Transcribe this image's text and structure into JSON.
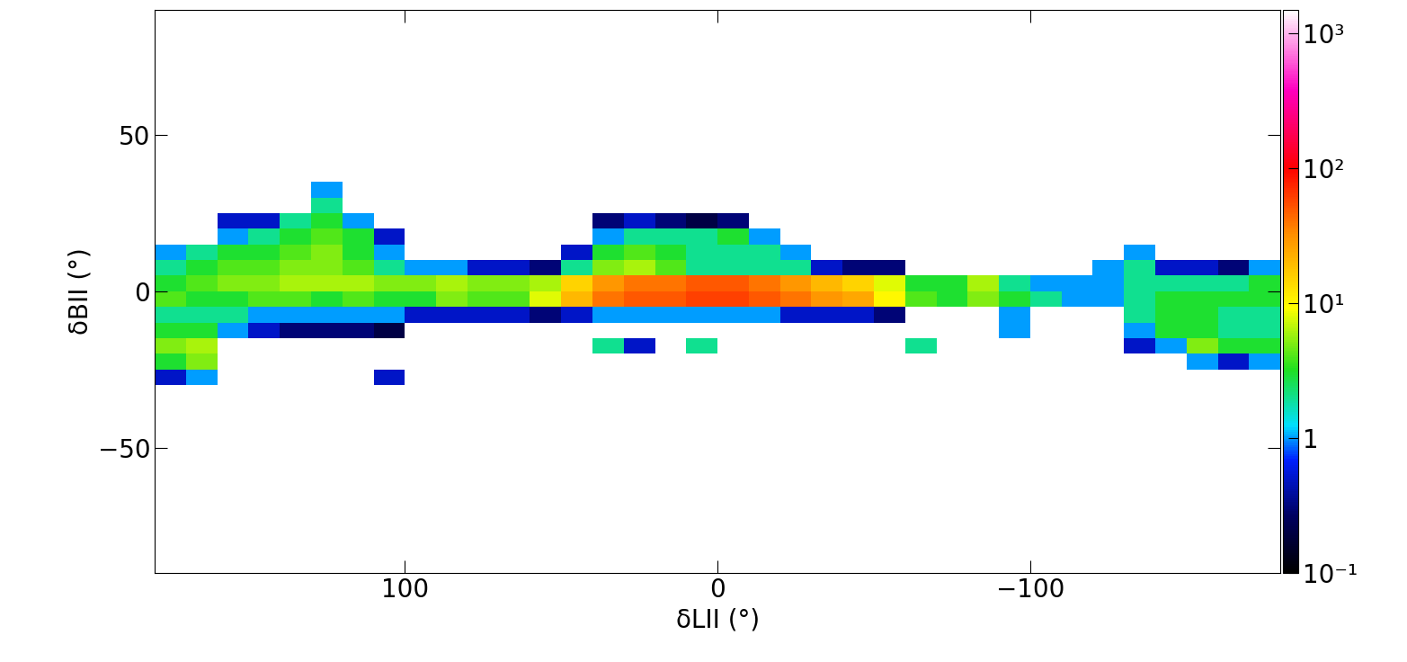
{
  "chart_data": {
    "type": "heatmap",
    "x_label": "δLII (°)",
    "y_label": "δBII (°)",
    "xlim": [
      180,
      -180
    ],
    "ylim": [
      -90,
      90
    ],
    "xticks": [
      100,
      0,
      {
        "value": -100,
        "label": "−100"
      }
    ],
    "yticks": [
      {
        "value": -50,
        "label": "−50"
      },
      0,
      50
    ],
    "log": true,
    "x_edges": [
      180,
      170,
      160,
      150,
      140,
      130,
      120,
      110,
      100,
      90,
      80,
      70,
      60,
      50,
      40,
      30,
      20,
      10,
      0,
      -10,
      -20,
      -30,
      -40,
      -50,
      -60,
      -70,
      -80,
      -90,
      -100,
      -110,
      -120,
      -130,
      -140,
      -150,
      -160,
      -170,
      -180
    ],
    "y_edges": [
      -35,
      -30,
      -25,
      -20,
      -15,
      -10,
      -5,
      0,
      5,
      10,
      15,
      20,
      25,
      30,
      35
    ],
    "cells": [
      [
        null,
        null,
        null,
        null,
        null,
        null,
        null,
        null,
        null,
        null,
        null,
        null,
        null,
        null,
        null,
        null,
        null,
        null,
        null,
        null,
        null,
        null,
        null,
        null,
        null,
        null,
        null,
        null,
        null,
        null,
        null,
        null,
        null,
        null,
        null,
        null
      ],
      [
        0.5,
        1,
        null,
        null,
        null,
        null,
        null,
        0.5,
        null,
        null,
        null,
        null,
        null,
        null,
        null,
        null,
        null,
        null,
        null,
        null,
        null,
        null,
        null,
        null,
        null,
        null,
        null,
        null,
        null,
        null,
        null,
        null,
        null,
        null,
        null,
        null
      ],
      [
        3,
        5,
        null,
        null,
        null,
        null,
        null,
        null,
        null,
        null,
        null,
        null,
        null,
        null,
        null,
        null,
        null,
        null,
        null,
        null,
        null,
        null,
        null,
        null,
        null,
        null,
        null,
        null,
        null,
        null,
        null,
        null,
        null,
        1,
        0.5,
        1
      ],
      [
        5,
        6,
        null,
        null,
        null,
        null,
        null,
        null,
        null,
        null,
        null,
        null,
        null,
        null,
        2,
        0.5,
        null,
        2,
        null,
        null,
        null,
        null,
        null,
        null,
        2,
        null,
        null,
        null,
        null,
        null,
        null,
        0.5,
        1,
        5,
        3,
        3
      ],
      [
        3,
        3,
        1,
        0.5,
        0.3,
        0.3,
        0.3,
        0.2,
        null,
        null,
        null,
        null,
        null,
        null,
        null,
        null,
        null,
        null,
        null,
        null,
        null,
        null,
        null,
        null,
        null,
        null,
        null,
        1,
        null,
        null,
        null,
        1,
        3,
        3,
        2,
        2
      ],
      [
        2,
        2,
        2,
        1,
        1,
        1,
        1,
        1,
        0.5,
        0.5,
        0.5,
        0.5,
        0.3,
        0.5,
        1,
        1,
        1,
        1,
        1,
        1,
        0.5,
        0.5,
        0.5,
        0.3,
        null,
        null,
        null,
        1,
        null,
        null,
        null,
        2,
        3,
        3,
        2,
        2
      ],
      [
        4,
        3,
        3,
        4,
        4,
        3,
        4,
        3,
        3,
        5,
        4,
        4,
        8,
        20,
        40,
        50,
        50,
        60,
        60,
        50,
        40,
        30,
        25,
        10,
        4,
        3,
        5,
        3,
        2,
        1,
        1,
        2,
        3,
        3,
        3,
        3
      ],
      [
        3,
        4,
        5,
        5,
        6,
        6,
        6,
        5,
        5,
        6,
        5,
        5,
        6,
        15,
        30,
        40,
        40,
        50,
        50,
        40,
        30,
        20,
        15,
        8,
        3,
        3,
        6,
        2,
        1,
        1,
        1,
        2,
        2,
        2,
        2,
        3
      ],
      [
        2,
        3,
        4,
        4,
        5,
        5,
        4,
        2,
        1,
        1,
        0.5,
        0.5,
        0.3,
        2,
        5,
        6,
        4,
        2,
        2,
        2,
        2,
        0.5,
        0.3,
        0.3,
        null,
        null,
        null,
        null,
        null,
        null,
        1,
        2,
        0.5,
        0.5,
        0.3,
        1
      ],
      [
        1,
        2,
        3,
        3,
        4,
        5,
        3,
        1,
        null,
        null,
        null,
        null,
        null,
        0.5,
        3,
        4,
        3,
        2,
        2,
        2,
        1,
        null,
        null,
        null,
        null,
        null,
        null,
        null,
        null,
        null,
        null,
        1,
        null,
        null,
        null,
        null
      ],
      [
        null,
        null,
        1,
        2,
        3,
        4,
        3,
        0.5,
        null,
        null,
        null,
        null,
        null,
        null,
        1,
        2,
        2,
        2,
        3,
        1,
        null,
        null,
        null,
        null,
        null,
        null,
        null,
        null,
        null,
        null,
        null,
        null,
        null,
        null,
        null,
        null
      ],
      [
        null,
        null,
        0.5,
        0.5,
        2,
        3,
        1,
        null,
        null,
        null,
        null,
        null,
        null,
        null,
        0.3,
        0.5,
        0.3,
        0.2,
        0.3,
        null,
        null,
        null,
        null,
        null,
        null,
        null,
        null,
        null,
        null,
        null,
        null,
        null,
        null,
        null,
        null,
        null
      ],
      [
        null,
        null,
        null,
        null,
        null,
        2,
        null,
        null,
        null,
        null,
        null,
        null,
        null,
        null,
        null,
        null,
        null,
        null,
        null,
        null,
        null,
        null,
        null,
        null,
        null,
        null,
        null,
        null,
        null,
        null,
        null,
        null,
        null,
        null,
        null,
        null
      ],
      [
        null,
        null,
        null,
        null,
        null,
        1,
        null,
        null,
        null,
        null,
        null,
        null,
        null,
        null,
        null,
        null,
        null,
        null,
        null,
        null,
        null,
        null,
        null,
        null,
        null,
        null,
        null,
        null,
        null,
        null,
        null,
        null,
        null,
        null,
        null,
        null
      ]
    ],
    "colorbar_range": [
      0.1,
      1500
    ],
    "colorbar_ticks": [
      {
        "value": 0.1,
        "label": "10⁻¹"
      },
      1,
      {
        "value": 10,
        "label": "10¹"
      },
      {
        "value": 100,
        "label": "10²"
      },
      {
        "value": 1000,
        "label": "10³"
      }
    ]
  }
}
